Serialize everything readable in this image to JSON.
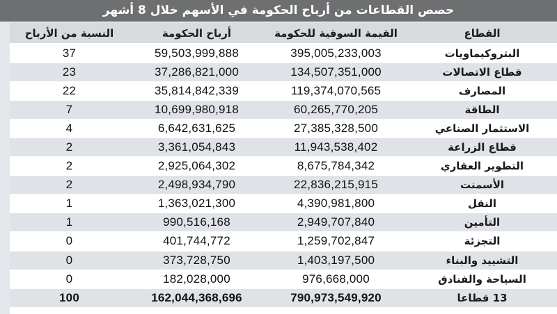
{
  "title": "حصص القطاعات من أرباح الحكومة في الأسهم خلال 8 أشهر",
  "table": {
    "headers": {
      "sector": "القطاع",
      "market_value": "القيمة السوقية للحكومة",
      "profits": "أرباح الحكومة",
      "share": "النسبة من الأرباح"
    },
    "rows": [
      {
        "sector": "البتروكيماويات",
        "market_value": "395,005,233,003",
        "profits": "59,503,999,888",
        "share": "37"
      },
      {
        "sector": "قطاع الاتصالات",
        "market_value": "134,507,351,000",
        "profits": "37,286,821,000",
        "share": "23"
      },
      {
        "sector": "المصارف",
        "market_value": "119,374,070,565",
        "profits": "35,814,842,339",
        "share": "22"
      },
      {
        "sector": "الطاقة",
        "market_value": "60,265,770,205",
        "profits": "10,699,980,918",
        "share": "7"
      },
      {
        "sector": "الاستثمار الصناعي",
        "market_value": "27,385,328,500",
        "profits": "6,642,631,625",
        "share": "4"
      },
      {
        "sector": "قطاع الزراعة",
        "market_value": "11,943,538,402",
        "profits": "3,361,054,843",
        "share": "2"
      },
      {
        "sector": "التطوير العقاري",
        "market_value": "8,675,784,342",
        "profits": "2,925,064,302",
        "share": "2"
      },
      {
        "sector": "الأسمنت",
        "market_value": "22,836,215,915",
        "profits": "2,498,934,790",
        "share": "2"
      },
      {
        "sector": "النقل",
        "market_value": "4,390,981,800",
        "profits": "1,363,021,300",
        "share": "1"
      },
      {
        "sector": "التأمين",
        "market_value": "2,949,707,840",
        "profits": "990,516,168",
        "share": "1"
      },
      {
        "sector": "التجزئة",
        "market_value": "1,259,702,847",
        "profits": "401,744,772",
        "share": "0"
      },
      {
        "sector": "التشييد والبناء",
        "market_value": "1,403,197,500",
        "profits": "373,728,750",
        "share": "0"
      },
      {
        "sector": "السياحة والفنادق",
        "market_value": "976,668,000",
        "profits": "182,028,000",
        "share": "0"
      }
    ],
    "total": {
      "sector": "13 قطاعا",
      "market_value": "790,973,549,920",
      "profits": "162,044,368,696",
      "share": "100"
    }
  },
  "colors": {
    "title_bg": "#6d6f71",
    "header_bg": "#d6dbe0",
    "stripe_bg": "#dfe3e7",
    "frame_bg": "#e4e8ec"
  }
}
